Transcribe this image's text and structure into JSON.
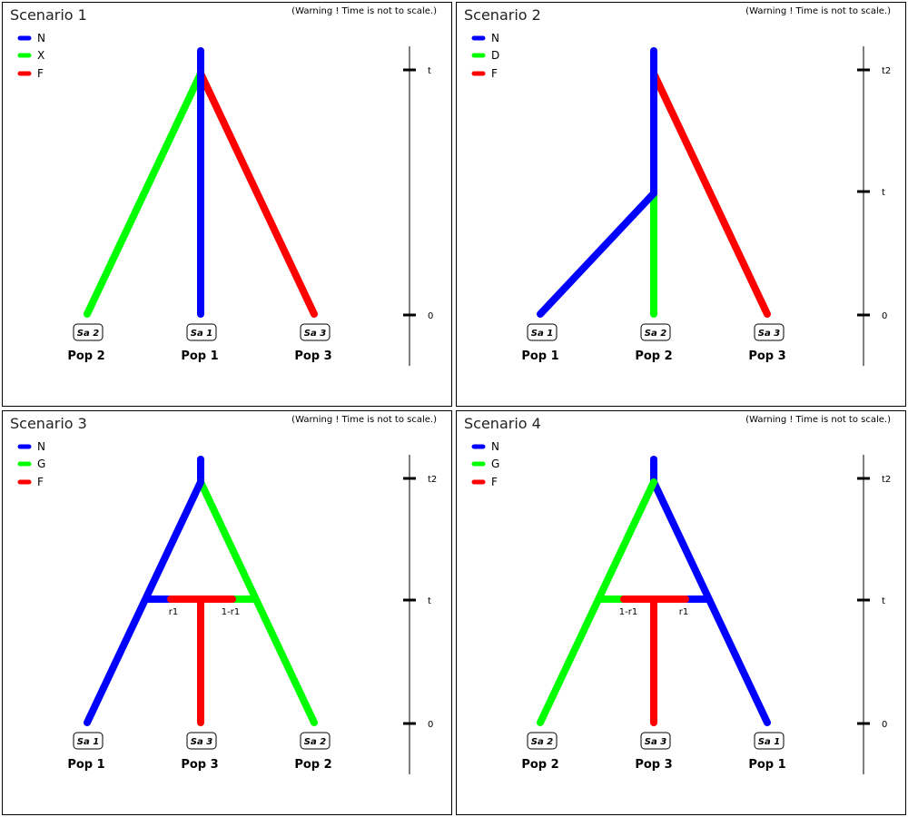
{
  "warning": "(Warning ! Time is not to scale.)",
  "colors": {
    "N": "#0000ff",
    "green": "#00ff00",
    "F": "#ff0000"
  },
  "scenarios": [
    {
      "title": "Scenario 1",
      "legend": [
        "N",
        "X",
        "F"
      ],
      "samples": [
        "Sa 2",
        "Sa 1",
        "Sa 3"
      ],
      "pops": [
        "Pop 2",
        "Pop 1",
        "Pop 3"
      ],
      "ticks": [
        "t",
        "0"
      ]
    },
    {
      "title": "Scenario 2",
      "legend": [
        "N",
        "D",
        "F"
      ],
      "samples": [
        "Sa 1",
        "Sa 2",
        "Sa 3"
      ],
      "pops": [
        "Pop 1",
        "Pop 2",
        "Pop 3"
      ],
      "ticks": [
        "t2",
        "t",
        "0"
      ]
    },
    {
      "title": "Scenario 3",
      "legend": [
        "N",
        "G",
        "F"
      ],
      "samples": [
        "Sa 1",
        "Sa 3",
        "Sa 2"
      ],
      "pops": [
        "Pop 1",
        "Pop 3",
        "Pop 2"
      ],
      "ticks": [
        "t2",
        "t",
        "0"
      ],
      "admix_labels": [
        "r1",
        "1-r1"
      ]
    },
    {
      "title": "Scenario 4",
      "legend": [
        "N",
        "G",
        "F"
      ],
      "samples": [
        "Sa 2",
        "Sa 3",
        "Sa 1"
      ],
      "pops": [
        "Pop 2",
        "Pop 3",
        "Pop 1"
      ],
      "ticks": [
        "t2",
        "t",
        "0"
      ],
      "admix_labels": [
        "1-r1",
        "r1"
      ]
    }
  ]
}
